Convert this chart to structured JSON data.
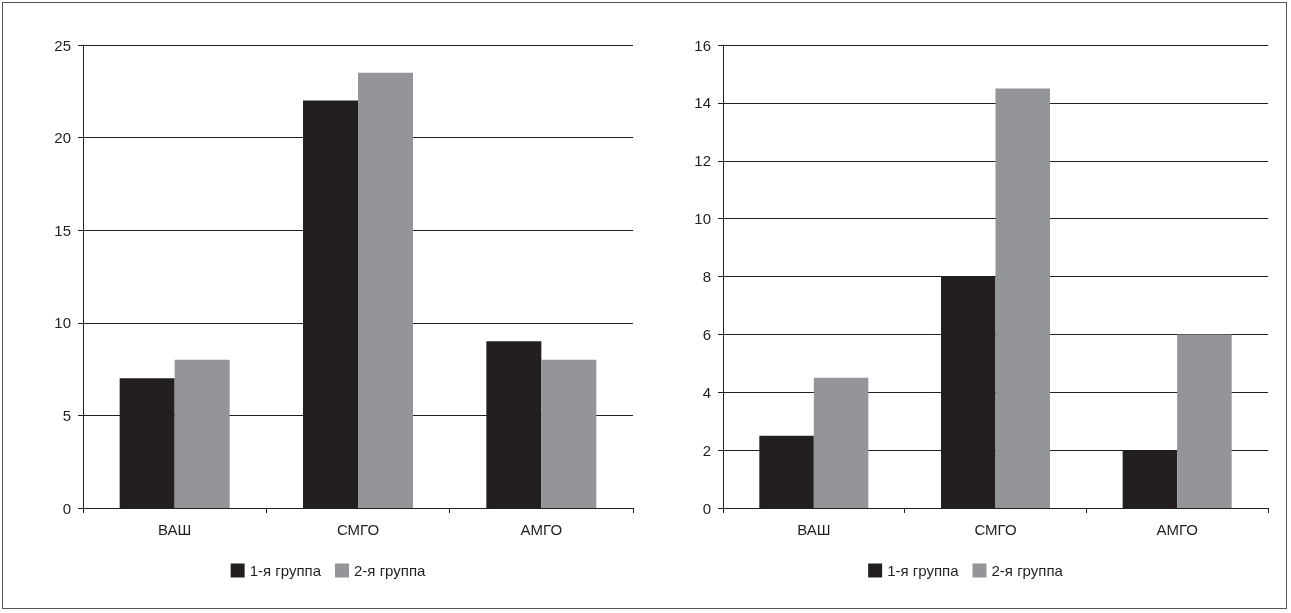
{
  "chart_data": [
    {
      "type": "bar",
      "categories": [
        "ВАШ",
        "СМГО",
        "АМГО"
      ],
      "series": [
        {
          "name": "1-я группа",
          "color": "#231f20",
          "values": [
            7,
            22,
            9
          ]
        },
        {
          "name": "2-я группа",
          "color": "#939598",
          "values": [
            8,
            23.5,
            8
          ]
        }
      ],
      "ylim": [
        0,
        25
      ],
      "yticks": [
        0,
        5,
        10,
        15,
        20,
        25
      ],
      "grid": "y",
      "legend": "bottom"
    },
    {
      "type": "bar",
      "categories": [
        "ВАШ",
        "СМГО",
        "АМГО"
      ],
      "series": [
        {
          "name": "1-я группа",
          "color": "#231f20",
          "values": [
            2.5,
            8,
            2
          ]
        },
        {
          "name": "2-я группа",
          "color": "#939598",
          "values": [
            4.5,
            14.5,
            6
          ]
        }
      ],
      "ylim": [
        0,
        16
      ],
      "yticks": [
        0,
        2,
        4,
        6,
        8,
        10,
        12,
        14,
        16
      ],
      "grid": "y",
      "legend": "bottom"
    }
  ]
}
